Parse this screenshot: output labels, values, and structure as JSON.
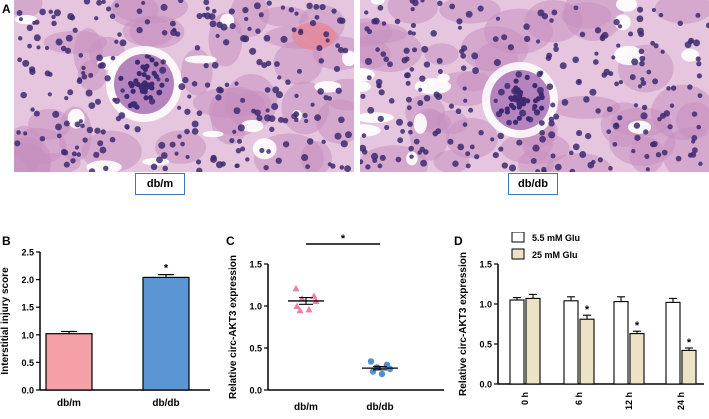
{
  "figure": {
    "panel_a": {
      "letter": "A",
      "images": [
        {
          "label": "db/m"
        },
        {
          "label": "db/db"
        }
      ]
    },
    "panel_b": {
      "letter": "B"
    },
    "panel_c": {
      "letter": "C"
    },
    "panel_d": {
      "letter": "D"
    }
  },
  "colors": {
    "he_background": "#e6c6df",
    "he_tubule": "#c78fc0",
    "he_nucleus": "#3d2a70",
    "blood": "#e58a9a",
    "pink_bar": "#f4a0a6",
    "blue_bar": "#5b95d3",
    "tan_bar": "#ece3c6",
    "pink_point": "#f07ea0",
    "blue_point": "#4e8fd8",
    "frame": "#3b78c3"
  },
  "chart_data": [
    {
      "type": "bar",
      "panel": "B",
      "ylabel": "Interstitial injury score",
      "categories": [
        "db/m",
        "db/db"
      ],
      "values": [
        1.02,
        2.04
      ],
      "errors": [
        0.04,
        0.05
      ],
      "colors": [
        "#f4a0a6",
        "#5b95d3"
      ],
      "ylim": [
        0,
        2.5
      ],
      "yticks": [
        "0.0",
        "0.5",
        "1.0",
        "1.5",
        "2.0",
        "2.5"
      ],
      "annotations": [
        {
          "category": "db/db",
          "text": "*"
        }
      ]
    },
    {
      "type": "scatter",
      "panel": "C",
      "ylabel": "Relative circ-AKT3 expression",
      "categories": [
        "db/m",
        "db/db"
      ],
      "points": [
        [
          1.21,
          1.12,
          1.09,
          1.06,
          1.0,
          0.96,
          0.95
        ],
        [
          0.34,
          0.3,
          0.27,
          0.25,
          0.22,
          0.19
        ]
      ],
      "means": [
        1.06,
        0.26
      ],
      "errors": [
        0.04,
        0.02
      ],
      "ylim": [
        0,
        1.5
      ],
      "yticks": [
        "0.0",
        "0.5",
        "1.0",
        "1.5"
      ],
      "significance": "*"
    },
    {
      "type": "bar",
      "panel": "D",
      "ylabel": "Relative circ-AKT3 expression",
      "categories": [
        "0 h",
        "6 h",
        "12 h",
        "24 h"
      ],
      "series": [
        {
          "name": "5.5 mM Glu",
          "values": [
            1.05,
            1.04,
            1.03,
            1.02
          ],
          "errors": [
            0.03,
            0.05,
            0.06,
            0.05
          ],
          "color": "#ffffff"
        },
        {
          "name": "25 mM Glu",
          "values": [
            1.07,
            0.81,
            0.63,
            0.42
          ],
          "errors": [
            0.05,
            0.05,
            0.03,
            0.03
          ],
          "color": "#ece3c6"
        }
      ],
      "ylim": [
        0,
        1.5
      ],
      "yticks": [
        "0.0",
        "0.5",
        "1.0",
        "1.5"
      ],
      "annotations": [
        {
          "category": "6 h",
          "text": "*"
        },
        {
          "category": "12 h",
          "text": "*"
        },
        {
          "category": "24 h",
          "text": "*"
        }
      ],
      "legend_position": "top"
    }
  ]
}
